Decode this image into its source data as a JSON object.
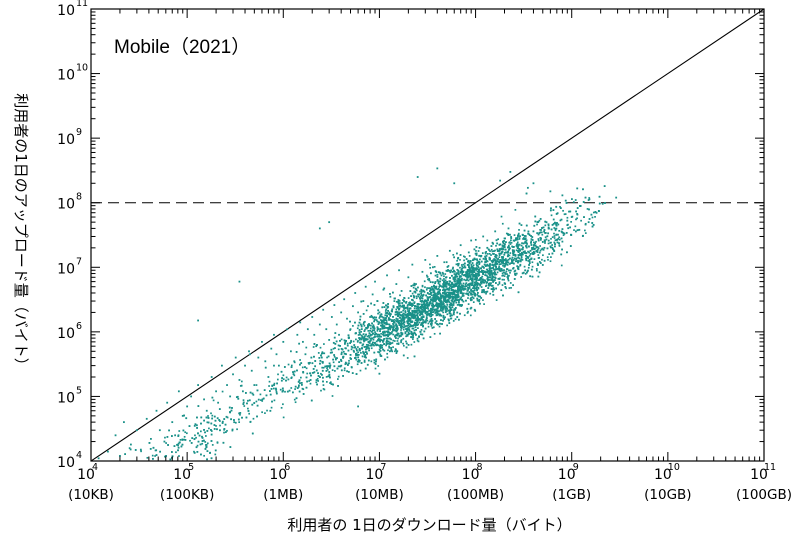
{
  "chart_data": {
    "type": "scatter",
    "annotation": "Mobile（2021）",
    "xlabel": "利用者の 1日のダウンロード量（バイト）",
    "ylabel": "利用者の1日のアップロード量（バイト）",
    "xscale": "log",
    "yscale": "log",
    "xlim": [
      10000,
      100000000000
    ],
    "ylim": [
      10000,
      100000000000
    ],
    "x_ticks": [
      {
        "base": "10",
        "exp": "4",
        "sub": "(10KB)"
      },
      {
        "base": "10",
        "exp": "5",
        "sub": "(100KB)"
      },
      {
        "base": "10",
        "exp": "6",
        "sub": "(1MB)"
      },
      {
        "base": "10",
        "exp": "7",
        "sub": "(10MB)"
      },
      {
        "base": "10",
        "exp": "8",
        "sub": "(100MB)"
      },
      {
        "base": "10",
        "exp": "9",
        "sub": "(1GB)"
      },
      {
        "base": "10",
        "exp": "10",
        "sub": "(10GB)"
      },
      {
        "base": "10",
        "exp": "11",
        "sub": "(100GB)"
      }
    ],
    "y_ticks": [
      {
        "base": "10",
        "exp": "4"
      },
      {
        "base": "10",
        "exp": "5"
      },
      {
        "base": "10",
        "exp": "6"
      },
      {
        "base": "10",
        "exp": "7"
      },
      {
        "base": "10",
        "exp": "8"
      },
      {
        "base": "10",
        "exp": "9"
      },
      {
        "base": "10",
        "exp": "10"
      },
      {
        "base": "10",
        "exp": "11"
      }
    ],
    "reference_lines": [
      {
        "kind": "diagonal",
        "from": [
          10000,
          10000
        ],
        "to": [
          100000000000,
          100000000000
        ],
        "style": "solid"
      },
      {
        "kind": "horizontal",
        "y": 100000000,
        "style": "dashed"
      }
    ],
    "point_color": "#1a9189",
    "series": [
      {
        "values": [
          [
            12000,
            11000
          ],
          [
            15000,
            14000
          ],
          [
            18000,
            25000
          ],
          [
            20000,
            12000
          ],
          [
            22000,
            40000
          ],
          [
            26000,
            18000
          ],
          [
            30000,
            30000
          ],
          [
            33000,
            15000
          ],
          [
            38000,
            45000
          ],
          [
            42000,
            22000
          ],
          [
            48000,
            60000
          ],
          [
            52000,
            30000
          ],
          [
            58000,
            20000
          ],
          [
            62000,
            80000
          ],
          [
            70000,
            40000
          ],
          [
            75000,
            25000
          ],
          [
            82000,
            120000
          ],
          [
            90000,
            50000
          ],
          [
            100000,
            70000
          ],
          [
            110000,
            100000
          ],
          [
            120000,
            35000
          ],
          [
            130000,
            150000
          ],
          [
            150000,
            90000
          ],
          [
            160000,
            60000
          ],
          [
            180000,
            200000
          ],
          [
            200000,
            120000
          ],
          [
            210000,
            80000
          ],
          [
            230000,
            300000
          ],
          [
            260000,
            150000
          ],
          [
            280000,
            100000
          ],
          [
            300000,
            220000
          ],
          [
            320000,
            400000
          ],
          [
            350000,
            180000
          ],
          [
            380000,
            120000
          ],
          [
            400000,
            300000
          ],
          [
            440000,
            500000
          ],
          [
            470000,
            250000
          ],
          [
            500000,
            150000
          ],
          [
            550000,
            400000
          ],
          [
            600000,
            700000
          ],
          [
            650000,
            350000
          ],
          [
            700000,
            200000
          ],
          [
            750000,
            550000
          ],
          [
            800000,
            900000
          ],
          [
            850000,
            450000
          ],
          [
            900000,
            300000
          ],
          [
            1000000,
            700000
          ],
          [
            1100000,
            1100000
          ],
          [
            1200000,
            500000
          ],
          [
            1300000,
            350000
          ],
          [
            1400000,
            900000
          ],
          [
            1500000,
            1400000
          ],
          [
            1600000,
            700000
          ],
          [
            1700000,
            450000
          ],
          [
            1800000,
            1100000
          ],
          [
            2000000,
            1700000
          ],
          [
            2100000,
            900000
          ],
          [
            2200000,
            600000
          ],
          [
            2400000,
            1300000
          ],
          [
            2600000,
            2200000
          ],
          [
            2800000,
            1100000
          ],
          [
            3000000,
            750000
          ],
          [
            3200000,
            1700000
          ],
          [
            3400000,
            2600000
          ],
          [
            3600000,
            1300000
          ],
          [
            3800000,
            900000
          ],
          [
            4000000,
            2000000
          ],
          [
            4300000,
            3200000
          ],
          [
            4600000,
            1600000
          ],
          [
            5000000,
            1100000
          ],
          [
            5300000,
            2500000
          ],
          [
            5600000,
            4000000
          ],
          [
            6000000,
            2000000
          ],
          [
            6400000,
            1300000
          ],
          [
            6800000,
            3000000
          ],
          [
            7200000,
            5000000
          ],
          [
            7600000,
            2500000
          ],
          [
            8000000,
            1700000
          ],
          [
            8500000,
            3800000
          ],
          [
            9000000,
            6000000
          ],
          [
            9500000,
            3000000
          ],
          [
            10000000,
            2000000
          ],
          [
            11000000,
            4500000
          ],
          [
            12000000,
            7500000
          ],
          [
            13000000,
            3500000
          ],
          [
            14000000,
            2500000
          ],
          [
            15000000,
            5500000
          ],
          [
            16000000,
            9000000
          ],
          [
            17000000,
            4300000
          ],
          [
            18000000,
            3000000
          ],
          [
            20000000,
            7000000
          ],
          [
            22000000,
            11000000
          ],
          [
            24000000,
            5500000
          ],
          [
            26000000,
            3800000
          ],
          [
            28000000,
            8500000
          ],
          [
            30000000,
            13000000
          ],
          [
            32000000,
            6500000
          ],
          [
            34000000,
            4500000
          ],
          [
            36000000,
            10000000
          ],
          [
            40000000,
            15000000
          ],
          [
            43000000,
            8000000
          ],
          [
            46000000,
            5500000
          ],
          [
            50000000,
            12000000
          ],
          [
            54000000,
            18000000
          ],
          [
            58000000,
            9500000
          ],
          [
            62000000,
            6500000
          ],
          [
            66000000,
            14000000
          ],
          [
            70000000,
            22000000
          ],
          [
            75000000,
            11000000
          ],
          [
            80000000,
            8000000
          ],
          [
            85000000,
            17000000
          ],
          [
            90000000,
            26000000
          ],
          [
            95000000,
            13000000
          ],
          [
            100000000,
            9500000
          ],
          [
            110000000,
            20000000
          ],
          [
            120000000,
            30000000
          ],
          [
            130000000,
            15000000
          ],
          [
            140000000,
            11000000
          ],
          [
            150000000,
            24000000
          ],
          [
            160000000,
            36000000
          ],
          [
            170000000,
            18000000
          ],
          [
            180000000,
            13000000
          ],
          [
            200000000,
            28000000
          ],
          [
            220000000,
            40000000
          ],
          [
            240000000,
            21000000
          ],
          [
            260000000,
            15000000
          ],
          [
            280000000,
            32000000
          ],
          [
            300000000,
            45000000
          ],
          [
            330000000,
            24000000
          ],
          [
            360000000,
            17000000
          ],
          [
            400000000,
            36000000
          ],
          [
            440000000,
            50000000
          ],
          [
            480000000,
            28000000
          ],
          [
            520000000,
            20000000
          ],
          [
            580000000,
            40000000
          ],
          [
            650000000,
            55000000
          ],
          [
            720000000,
            32000000
          ],
          [
            800000000,
            25000000
          ],
          [
            900000000,
            45000000
          ],
          [
            1000000000,
            60000000
          ],
          [
            1200000000,
            38000000
          ],
          [
            1500000000,
            50000000
          ],
          [
            2900000000,
            120000000
          ],
          [
            40000000,
            340000000
          ],
          [
            25000000,
            250000000
          ],
          [
            60000000,
            200000000
          ],
          [
            230000000,
            300000000
          ],
          [
            180000000,
            220000000
          ],
          [
            400000000,
            200000000
          ],
          [
            350000000,
            170000000
          ],
          [
            600000000,
            150000000
          ],
          [
            800000000,
            130000000
          ],
          [
            1100000000,
            110000000
          ],
          [
            1500000000,
            110000000
          ],
          [
            3000000,
            50000000
          ],
          [
            2400000,
            40000000
          ],
          [
            350000,
            6000000
          ],
          [
            450000,
            450000
          ],
          [
            130000,
            1500000
          ],
          [
            800000,
            300000
          ],
          [
            6000000,
            70000
          ]
        ]
      }
    ]
  }
}
